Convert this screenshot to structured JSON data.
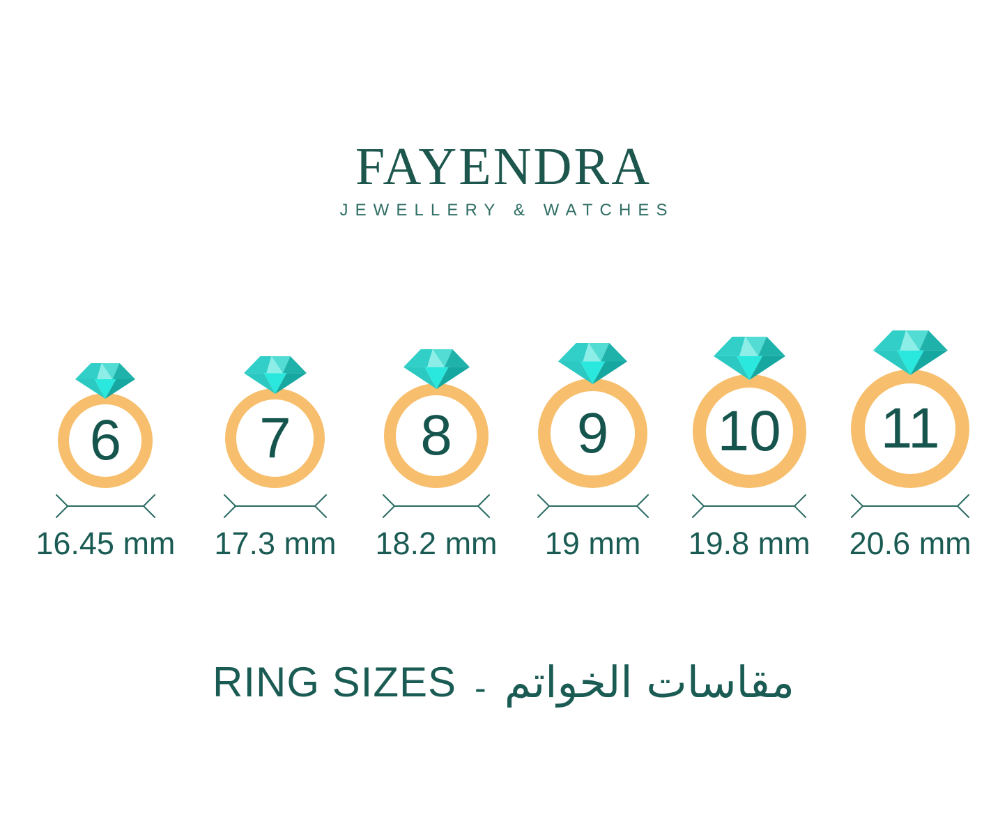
{
  "logo": {
    "brand": "FAYENDRA",
    "tagline": "JEWELLERY & WATCHES"
  },
  "rings": [
    {
      "size": "6",
      "diameter_mm": 16.45,
      "diameter_label": "16.45 mm"
    },
    {
      "size": "7",
      "diameter_mm": 17.3,
      "diameter_label": "17.3 mm"
    },
    {
      "size": "8",
      "diameter_mm": 18.2,
      "diameter_label": "18.2 mm"
    },
    {
      "size": "9",
      "diameter_mm": 19.0,
      "diameter_label": "19 mm"
    },
    {
      "size": "10",
      "diameter_mm": 19.8,
      "diameter_label": "19.8 mm"
    },
    {
      "size": "11",
      "diameter_mm": 20.6,
      "diameter_label": "20.6 mm"
    }
  ],
  "footer": {
    "title_en": "RING SIZES",
    "separator": "-",
    "title_ar": "مقاسات الخواتم"
  },
  "icons": {
    "diamond": "diamond-gem-icon",
    "dimension": "dimension-arrow-line-icon"
  },
  "colors": {
    "background": "#ffffff",
    "logo_teal": "#1c564d",
    "tagline_teal": "#2f6e64",
    "text_teal": "#1a5b53",
    "number_teal": "#16554d",
    "band_gold": "#f7bf6d",
    "dimension_line": "#2a6b63",
    "diamond_light": "#8deee8",
    "diamond_medium": "#31cfc7",
    "diamond_medium2": "#52dcd4",
    "diamond_dark": "#1fb2ab",
    "pavilion_left": "#2bc9c1",
    "pavilion_center": "#2ae8dd",
    "pavilion_right": "#16a7a0"
  }
}
